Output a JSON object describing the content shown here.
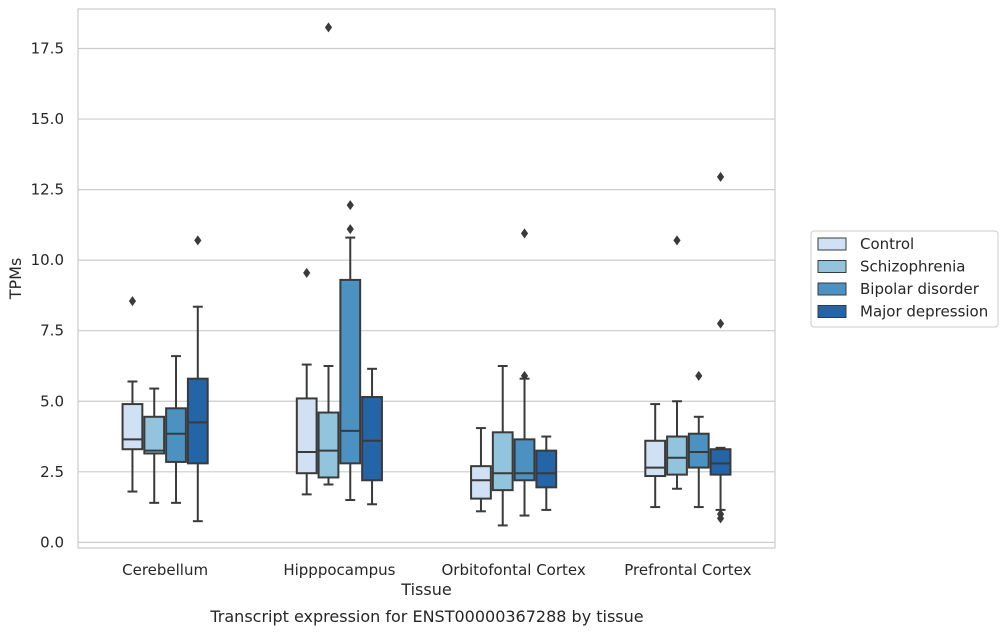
{
  "chart_data": {
    "type": "boxplot",
    "xlabel": "Tissue",
    "ylabel": "TPMs",
    "caption": "Transcript expression for ENST00000367288 by tissue",
    "ylim": [
      -0.2,
      18.9
    ],
    "yticks": [
      "0.0",
      "2.5",
      "5.0",
      "7.5",
      "10.0",
      "12.5",
      "15.0",
      "17.5"
    ],
    "grid": "horizontal",
    "legend_placement": "right",
    "categories": [
      "Cerebellum",
      "Hipppocampus",
      "Orbitofontal Cortex",
      "Prefrontal Cortex"
    ],
    "series": [
      {
        "name": "Control",
        "color": "#cfe1f2",
        "boxes": [
          {
            "whislo": 1.8,
            "q1": 3.3,
            "med": 3.65,
            "q3": 4.9,
            "whishi": 5.7,
            "fliers": [
              8.55
            ]
          },
          {
            "whislo": 1.7,
            "q1": 2.45,
            "med": 3.2,
            "q3": 5.1,
            "whishi": 6.3,
            "fliers": [
              9.55
            ]
          },
          {
            "whislo": 1.1,
            "q1": 1.55,
            "med": 2.2,
            "q3": 2.7,
            "whishi": 4.05,
            "fliers": []
          },
          {
            "whislo": 1.25,
            "q1": 2.35,
            "med": 2.65,
            "q3": 3.6,
            "whishi": 4.9,
            "fliers": []
          }
        ]
      },
      {
        "name": "Schizophrenia",
        "color": "#93c4de",
        "boxes": [
          {
            "whislo": 1.4,
            "q1": 3.15,
            "med": 3.25,
            "q3": 4.45,
            "whishi": 5.45,
            "fliers": []
          },
          {
            "whislo": 2.05,
            "q1": 2.3,
            "med": 3.25,
            "q3": 4.6,
            "whishi": 6.25,
            "fliers": [
              18.25
            ]
          },
          {
            "whislo": 0.6,
            "q1": 1.85,
            "med": 2.45,
            "q3": 3.9,
            "whishi": 6.25,
            "fliers": []
          },
          {
            "whislo": 1.9,
            "q1": 2.4,
            "med": 3.0,
            "q3": 3.75,
            "whishi": 5.0,
            "fliers": [
              10.7
            ]
          }
        ]
      },
      {
        "name": "Bipolar disorder",
        "color": "#4b92c3",
        "boxes": [
          {
            "whislo": 1.4,
            "q1": 2.85,
            "med": 3.85,
            "q3": 4.75,
            "whishi": 6.6,
            "fliers": []
          },
          {
            "whislo": 1.5,
            "q1": 2.8,
            "med": 3.95,
            "q3": 9.3,
            "whishi": 10.8,
            "fliers": [
              11.95,
              11.1
            ]
          },
          {
            "whislo": 0.95,
            "q1": 2.2,
            "med": 2.45,
            "q3": 3.65,
            "whishi": 5.8,
            "fliers": [
              10.95,
              5.9
            ]
          },
          {
            "whislo": 1.25,
            "q1": 2.65,
            "med": 3.2,
            "q3": 3.85,
            "whishi": 4.45,
            "fliers": [
              5.9
            ]
          }
        ]
      },
      {
        "name": "Major depression",
        "color": "#2465a8",
        "boxes": [
          {
            "whislo": 0.75,
            "q1": 2.8,
            "med": 4.25,
            "q3": 5.8,
            "whishi": 8.35,
            "fliers": [
              10.7
            ]
          },
          {
            "whislo": 1.35,
            "q1": 2.2,
            "med": 3.6,
            "q3": 5.15,
            "whishi": 6.15,
            "fliers": []
          },
          {
            "whislo": 1.15,
            "q1": 1.95,
            "med": 2.45,
            "q3": 3.25,
            "whishi": 3.75,
            "fliers": []
          },
          {
            "whislo": 1.15,
            "q1": 2.4,
            "med": 2.8,
            "q3": 3.3,
            "whishi": 3.35,
            "fliers": [
              12.95,
              7.75,
              1.0,
              0.85
            ]
          }
        ]
      }
    ]
  }
}
